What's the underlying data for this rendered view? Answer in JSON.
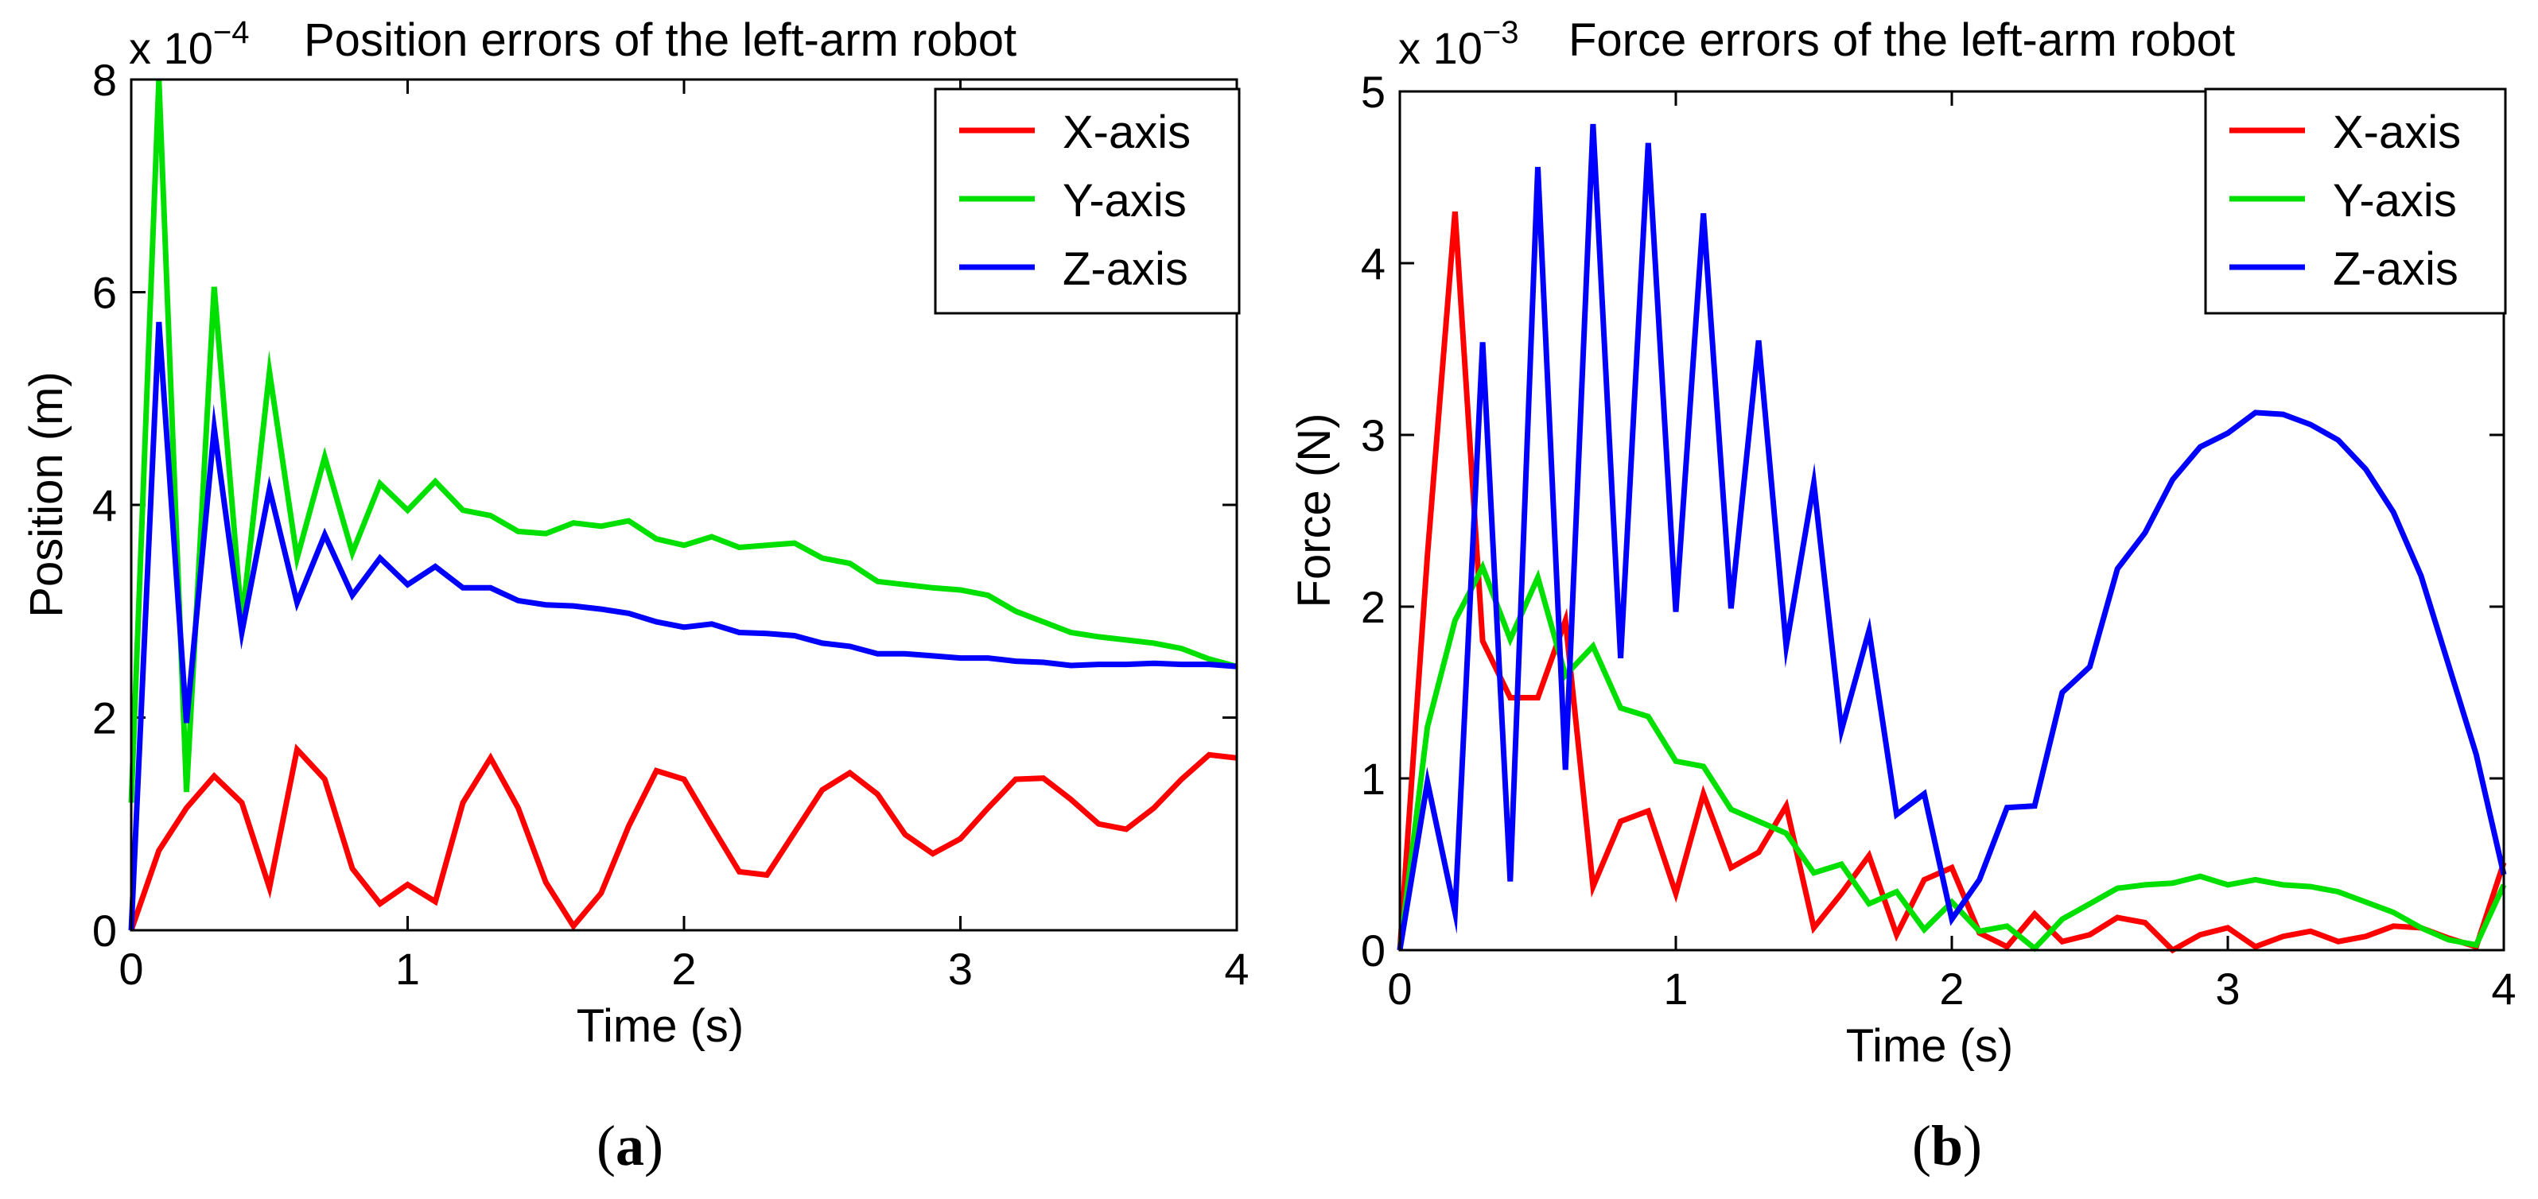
{
  "chart_data": [
    {
      "type": "line",
      "title": "Position errors of the left-arm robot",
      "xlabel": "Time (s)",
      "ylabel": "Position (m)",
      "y_multiplier": {
        "base": "x 10",
        "exponent": "−4"
      },
      "xlim": [
        0,
        4
      ],
      "ylim": [
        0,
        8
      ],
      "x_ticks": [
        0,
        1,
        2,
        3,
        4
      ],
      "x_tick_labels": [
        "0",
        "1",
        "2",
        "3",
        "4"
      ],
      "y_ticks": [
        0,
        2,
        4,
        6,
        8
      ],
      "y_tick_labels": [
        "0",
        "2",
        "4",
        "6",
        "8"
      ],
      "grid": false,
      "legend_position": "top-right",
      "panel_label": {
        "open": "(",
        "letter": "a",
        "close": ")"
      },
      "x": [
        0,
        0.1,
        0.2,
        0.3,
        0.4,
        0.5,
        0.6,
        0.7,
        0.8,
        0.9,
        1.0,
        1.1,
        1.2,
        1.3,
        1.4,
        1.5,
        1.6,
        1.7,
        1.8,
        1.9,
        2.0,
        2.1,
        2.2,
        2.3,
        2.4,
        2.5,
        2.6,
        2.7,
        2.8,
        2.9,
        3.0,
        3.1,
        3.2,
        3.3,
        3.4,
        3.5,
        3.6,
        3.7,
        3.8,
        3.9,
        4.0
      ],
      "series": [
        {
          "name": "X-axis",
          "color": "#ff0000",
          "values": [
            0,
            0.75,
            1.15,
            1.45,
            1.2,
            0.4,
            1.7,
            1.42,
            0.58,
            0.25,
            0.43,
            0.27,
            1.2,
            1.62,
            1.15,
            0.45,
            0.04,
            0.35,
            0.98,
            1.5,
            1.42,
            0.98,
            0.55,
            0.52,
            0.92,
            1.32,
            1.48,
            1.28,
            0.9,
            0.72,
            0.86,
            1.15,
            1.42,
            1.43,
            1.23,
            1.0,
            0.95,
            1.15,
            1.42,
            1.65,
            1.62
          ]
        },
        {
          "name": "Y-axis",
          "color": "#00e000",
          "values": [
            1.2,
            8.0,
            1.3,
            6.05,
            2.9,
            5.25,
            3.5,
            4.45,
            3.55,
            4.2,
            3.95,
            4.22,
            3.95,
            3.9,
            3.75,
            3.73,
            3.83,
            3.8,
            3.85,
            3.68,
            3.62,
            3.7,
            3.6,
            3.62,
            3.64,
            3.5,
            3.45,
            3.28,
            3.25,
            3.22,
            3.2,
            3.15,
            3.0,
            2.9,
            2.8,
            2.76,
            2.73,
            2.7,
            2.65,
            2.55,
            2.48
          ]
        },
        {
          "name": "Z-axis",
          "color": "#0000ff",
          "values": [
            0,
            5.72,
            1.95,
            4.72,
            2.8,
            4.15,
            3.08,
            3.72,
            3.15,
            3.5,
            3.25,
            3.42,
            3.22,
            3.22,
            3.1,
            3.06,
            3.05,
            3.02,
            2.98,
            2.9,
            2.85,
            2.88,
            2.8,
            2.79,
            2.77,
            2.7,
            2.67,
            2.6,
            2.6,
            2.58,
            2.56,
            2.56,
            2.53,
            2.52,
            2.49,
            2.5,
            2.5,
            2.51,
            2.5,
            2.5,
            2.48
          ]
        }
      ]
    },
    {
      "type": "line",
      "title": "Force errors of the left-arm robot",
      "xlabel": "Time (s)",
      "ylabel": "Force (N)",
      "y_multiplier": {
        "base": "x 10",
        "exponent": "−3"
      },
      "xlim": [
        0,
        4
      ],
      "ylim": [
        0,
        5
      ],
      "x_ticks": [
        0,
        1,
        2,
        3,
        4
      ],
      "x_tick_labels": [
        "0",
        "1",
        "2",
        "3",
        "4"
      ],
      "y_ticks": [
        0,
        1,
        2,
        3,
        4,
        5
      ],
      "y_tick_labels": [
        "0",
        "1",
        "2",
        "3",
        "4",
        "5"
      ],
      "grid": false,
      "legend_position": "top-right",
      "panel_label": {
        "open": "(",
        "letter": "b",
        "close": ")"
      },
      "x": [
        0,
        0.1,
        0.2,
        0.3,
        0.4,
        0.5,
        0.6,
        0.7,
        0.8,
        0.9,
        1.0,
        1.1,
        1.2,
        1.3,
        1.4,
        1.5,
        1.6,
        1.7,
        1.8,
        1.9,
        2.0,
        2.1,
        2.2,
        2.3,
        2.4,
        2.5,
        2.6,
        2.7,
        2.8,
        2.9,
        3.0,
        3.1,
        3.2,
        3.3,
        3.4,
        3.5,
        3.6,
        3.7,
        3.8,
        3.9,
        4.0
      ],
      "series": [
        {
          "name": "X-axis",
          "color": "#ff0000",
          "values": [
            0,
            2.3,
            4.3,
            1.8,
            1.47,
            1.47,
            1.92,
            0.37,
            0.75,
            0.81,
            0.33,
            0.91,
            0.48,
            0.57,
            0.84,
            0.13,
            0.33,
            0.55,
            0.09,
            0.41,
            0.48,
            0.1,
            0.02,
            0.21,
            0.05,
            0.09,
            0.19,
            0.16,
            0.0,
            0.09,
            0.13,
            0.02,
            0.08,
            0.11,
            0.05,
            0.08,
            0.14,
            0.13,
            0.07,
            0.02,
            0.51
          ]
        },
        {
          "name": "Y-axis",
          "color": "#00e000",
          "values": [
            0,
            1.3,
            1.92,
            2.23,
            1.81,
            2.17,
            1.6,
            1.77,
            1.41,
            1.36,
            1.1,
            1.07,
            0.82,
            0.75,
            0.68,
            0.45,
            0.5,
            0.27,
            0.34,
            0.12,
            0.28,
            0.11,
            0.14,
            0.01,
            0.18,
            0.27,
            0.36,
            0.38,
            0.39,
            0.43,
            0.38,
            0.41,
            0.38,
            0.37,
            0.34,
            0.28,
            0.22,
            0.13,
            0.06,
            0.03,
            0.38
          ]
        },
        {
          "name": "Z-axis",
          "color": "#0000ff",
          "values": [
            0,
            0.98,
            0.22,
            3.54,
            0.4,
            4.56,
            1.05,
            4.81,
            1.7,
            4.7,
            1.97,
            4.29,
            1.99,
            3.55,
            1.77,
            2.72,
            1.28,
            1.86,
            0.79,
            0.91,
            0.18,
            0.41,
            0.83,
            0.84,
            1.5,
            1.65,
            2.22,
            2.43,
            2.74,
            2.93,
            3.01,
            3.13,
            3.12,
            3.06,
            2.97,
            2.8,
            2.55,
            2.18,
            1.66,
            1.14,
            0.44
          ]
        }
      ]
    }
  ]
}
